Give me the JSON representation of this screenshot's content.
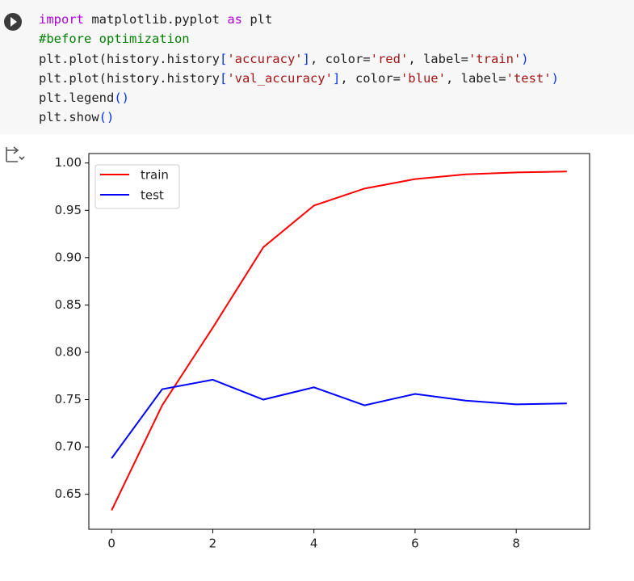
{
  "code": {
    "lines": [
      [
        {
          "text": "import",
          "color": "#af00db"
        },
        {
          "text": " matplotlib.pyplot ",
          "color": "#1f1f1f"
        },
        {
          "text": "as",
          "color": "#af00db"
        },
        {
          "text": " plt",
          "color": "#1f1f1f"
        }
      ],
      [
        {
          "text": "#before optimization",
          "color": "#008000"
        }
      ],
      [
        {
          "text": "plt.plot(history.history",
          "color": "#1f1f1f"
        },
        {
          "text": "[",
          "color": "#0431fa"
        },
        {
          "text": "'accuracy'",
          "color": "#a31515"
        },
        {
          "text": "]",
          "color": "#0431fa"
        },
        {
          "text": ", color=",
          "color": "#1f1f1f"
        },
        {
          "text": "'red'",
          "color": "#a31515"
        },
        {
          "text": ", label=",
          "color": "#1f1f1f"
        },
        {
          "text": "'train'",
          "color": "#a31515"
        },
        {
          "text": ")",
          "color": "#0431fa"
        }
      ],
      [
        {
          "text": "plt.plot(history.history",
          "color": "#1f1f1f"
        },
        {
          "text": "[",
          "color": "#0431fa"
        },
        {
          "text": "'val_accuracy'",
          "color": "#a31515"
        },
        {
          "text": "]",
          "color": "#0431fa"
        },
        {
          "text": ", color=",
          "color": "#1f1f1f"
        },
        {
          "text": "'blue'",
          "color": "#a31515"
        },
        {
          "text": ", label=",
          "color": "#1f1f1f"
        },
        {
          "text": "'test'",
          "color": "#a31515"
        },
        {
          "text": ")",
          "color": "#0431fa"
        }
      ],
      [
        {
          "text": "plt.legend",
          "color": "#1f1f1f"
        },
        {
          "text": "()",
          "color": "#0431fa"
        }
      ],
      [
        {
          "text": "plt.show",
          "color": "#1f1f1f"
        },
        {
          "text": "()",
          "color": "#0431fa"
        }
      ]
    ]
  },
  "chart_data": {
    "type": "line",
    "x": [
      0,
      1,
      2,
      3,
      4,
      5,
      6,
      7,
      8,
      9
    ],
    "series": [
      {
        "name": "train",
        "color": "#ff0000",
        "values": [
          0.633,
          0.744,
          0.826,
          0.911,
          0.955,
          0.973,
          0.983,
          0.988,
          0.99,
          0.991
        ]
      },
      {
        "name": "test",
        "color": "#0000ff",
        "values": [
          0.688,
          0.761,
          0.771,
          0.75,
          0.763,
          0.744,
          0.756,
          0.749,
          0.745,
          0.746
        ]
      }
    ],
    "xlim": [
      -0.45,
      9.45
    ],
    "xticks": [
      0,
      2,
      4,
      6,
      8
    ],
    "ylim": [
      0.613,
      1.01
    ],
    "yticks": [
      0.65,
      {
        "value": 0.7,
        "label": "0.70"
      },
      0.75,
      {
        "value": 0.8,
        "label": "0.80"
      },
      0.85,
      {
        "value": 0.9,
        "label": "0.90"
      },
      0.95,
      {
        "value": 1,
        "label": "1.00"
      }
    ],
    "grid": false,
    "legend": "upper left"
  }
}
